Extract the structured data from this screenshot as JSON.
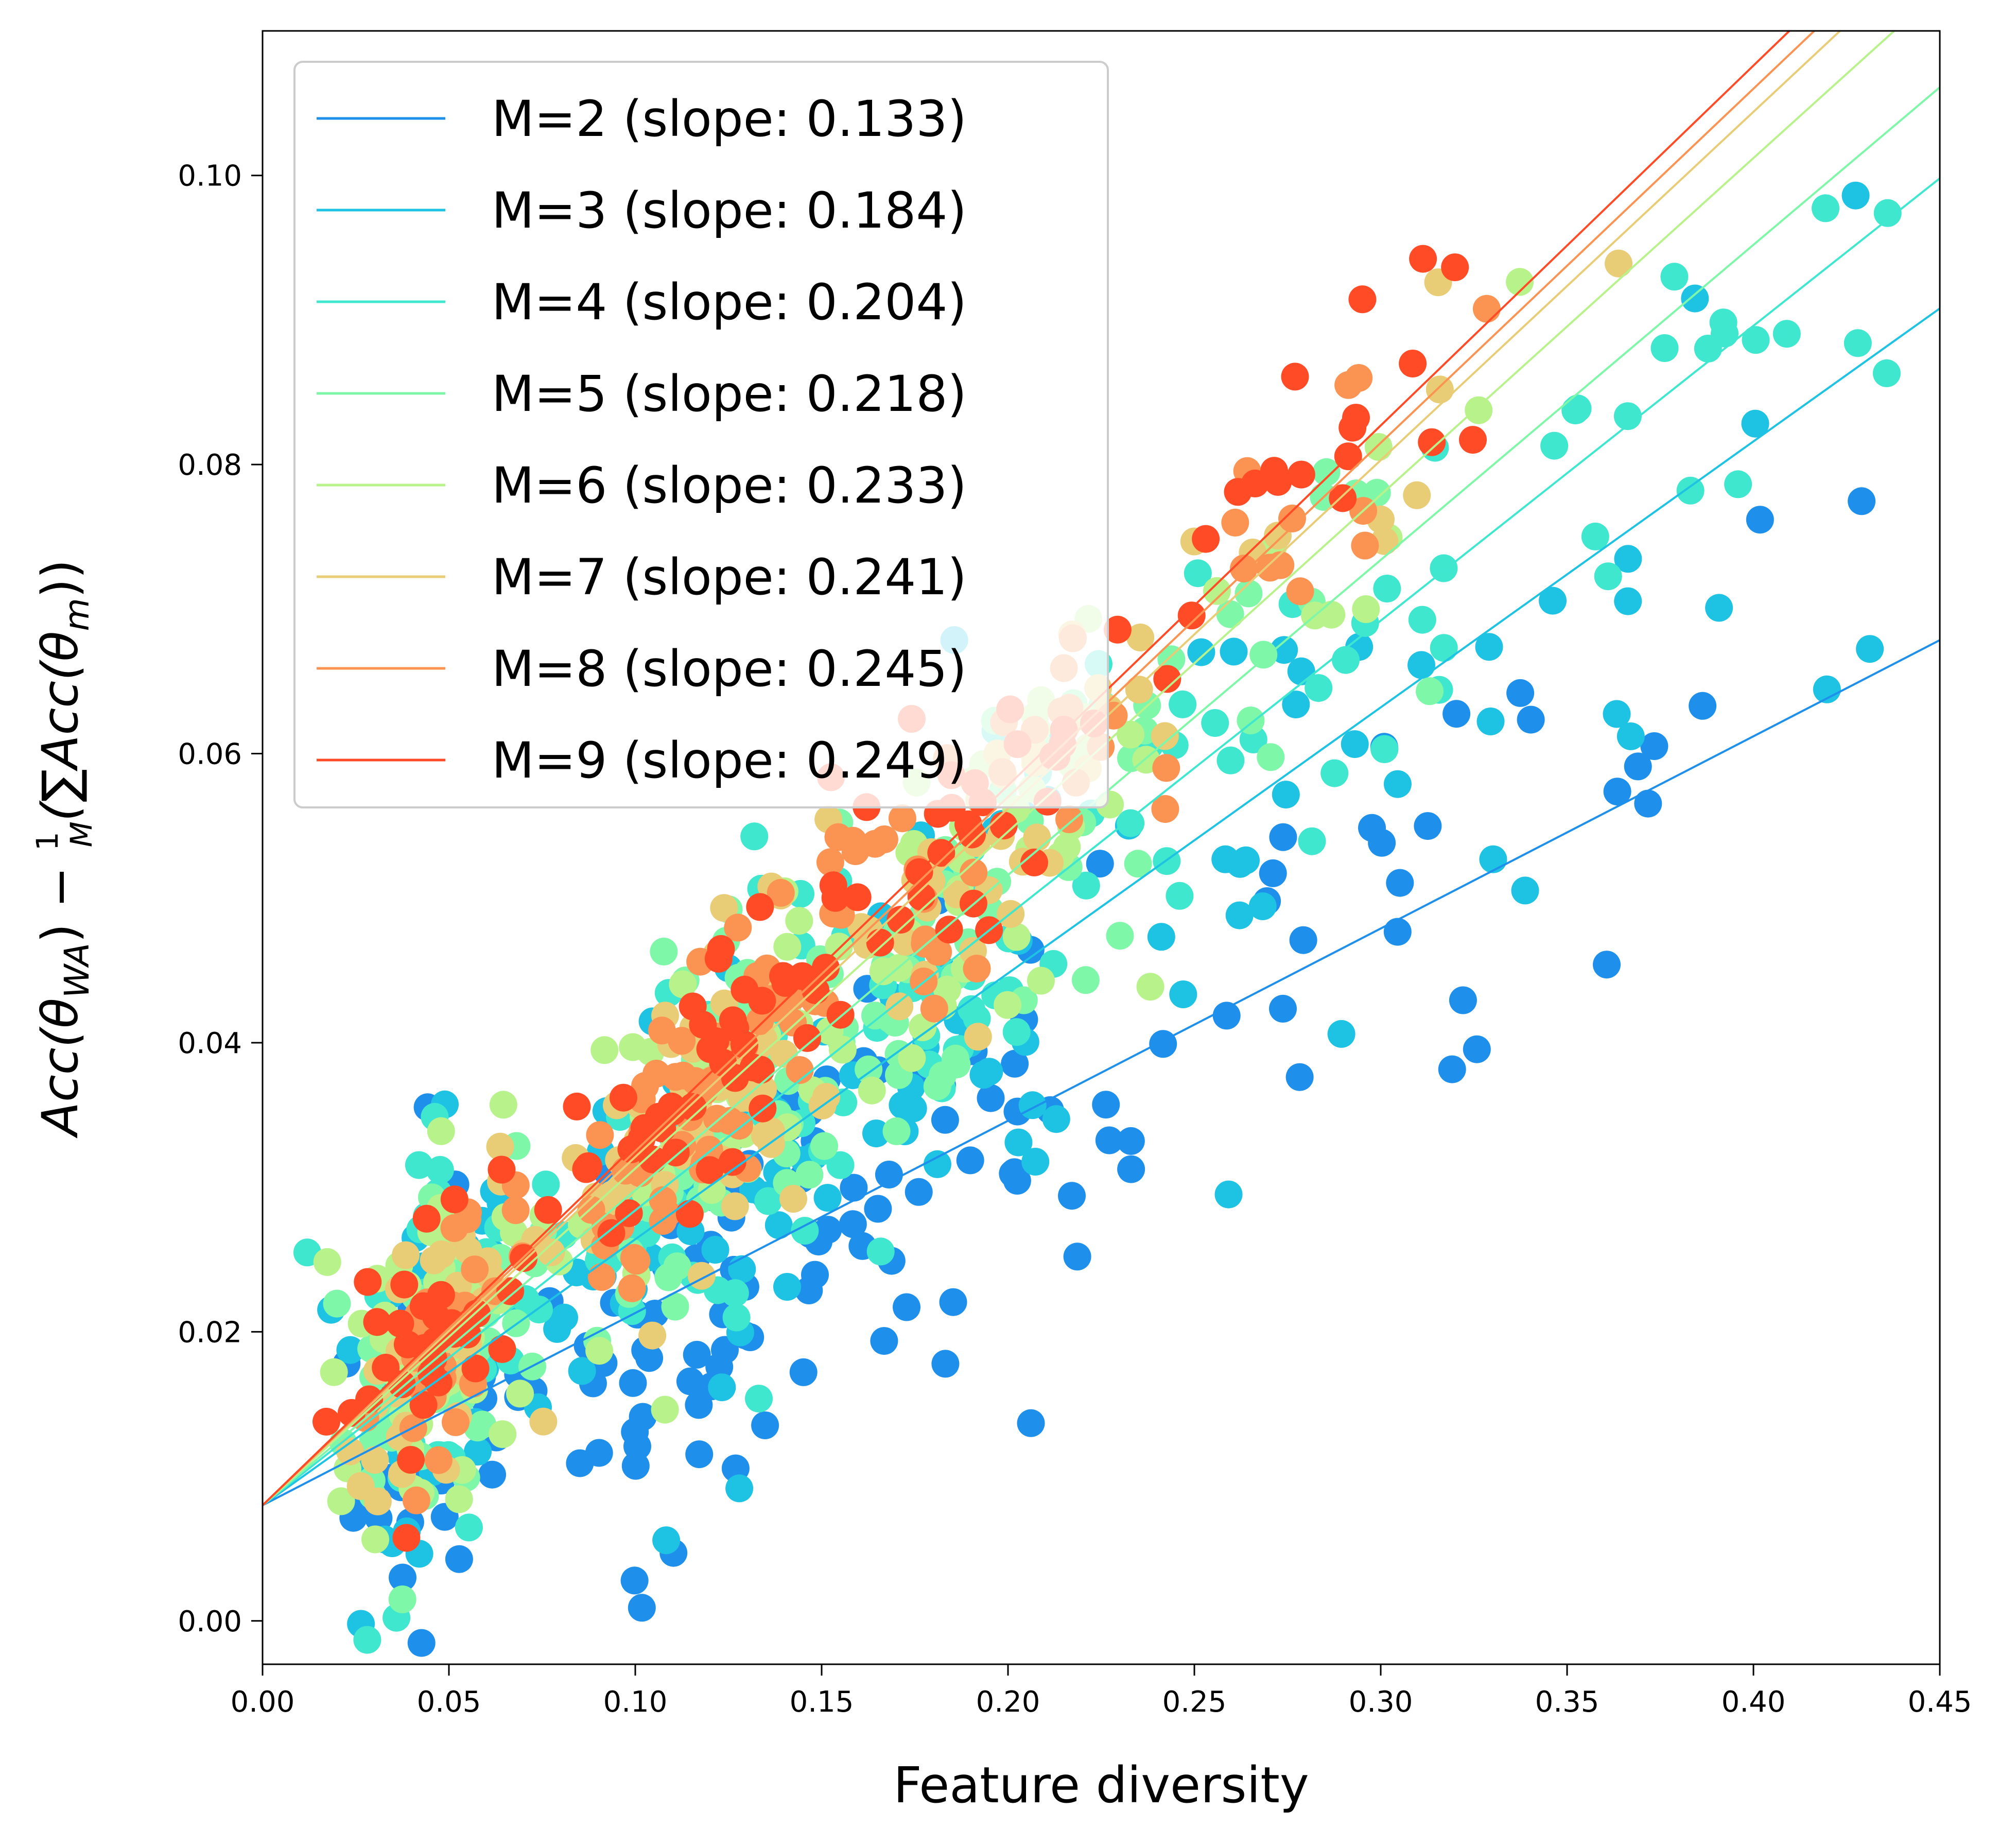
{
  "chart_data": {
    "type": "scatter",
    "title": "",
    "xlabel": "Feature diversity",
    "ylabel": "Acc(θWA) − 1/M(∑Acc(θm))",
    "ylabel_parts": {
      "main": "Acc(θ",
      "sub": "WA",
      "mid": ") − ",
      "frac_num": "1",
      "frac_den": "M",
      "open": "(∑Acc(θ",
      "sub2": "m",
      "close": "))"
    },
    "xlim": [
      0.0,
      0.45
    ],
    "ylim": [
      -0.003,
      0.11
    ],
    "xticks": [
      "0.00",
      "0.05",
      "0.10",
      "0.15",
      "0.20",
      "0.25",
      "0.30",
      "0.35",
      "0.40",
      "0.45"
    ],
    "yticks": [
      "0.00",
      "0.02",
      "0.04",
      "0.06",
      "0.08",
      "0.10"
    ],
    "intercept": 0.008,
    "legend_position": "upper-left",
    "series": [
      {
        "name": "M=2 (slope: 0.133)",
        "M": 2,
        "slope": 0.133,
        "color": "#1e90ec"
      },
      {
        "name": "M=3 (slope: 0.184)",
        "M": 3,
        "slope": 0.184,
        "color": "#1ec3e3"
      },
      {
        "name": "M=4 (slope: 0.204)",
        "M": 4,
        "slope": 0.204,
        "color": "#3fe7cf"
      },
      {
        "name": "M=5 (slope: 0.218)",
        "M": 5,
        "slope": 0.218,
        "color": "#7ff7a9"
      },
      {
        "name": "M=6 (slope: 0.233)",
        "M": 6,
        "slope": 0.233,
        "color": "#b8f28a"
      },
      {
        "name": "M=7 (slope: 0.241)",
        "M": 7,
        "slope": 0.241,
        "color": "#e8cc76"
      },
      {
        "name": "M=8 (slope: 0.245)",
        "M": 8,
        "slope": 0.245,
        "color": "#fb9452"
      },
      {
        "name": "M=9 (slope: 0.249)",
        "M": 9,
        "slope": 0.249,
        "color": "#ff4b26"
      }
    ]
  }
}
